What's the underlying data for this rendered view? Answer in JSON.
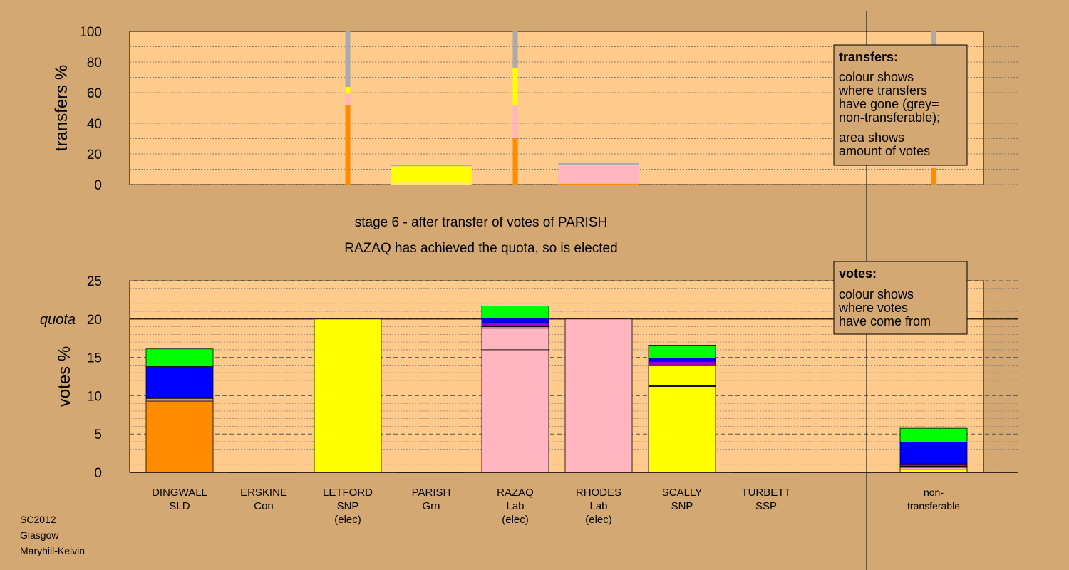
{
  "colors": {
    "background": "#d4a872",
    "plot": "#ffcb8c",
    "orange": "#ff8c00",
    "pink": "#ffb6c1",
    "yellow": "#ffff00",
    "blue": "#0000ff",
    "green": "#00ff00",
    "grey": "#aaaaaa",
    "purple": "#9900cc"
  },
  "caption": {
    "line1": "stage 6 - after transfer of votes of PARISH",
    "line2": "RAZAQ has achieved the quota, so is elected"
  },
  "footer": [
    "SC2012",
    "Glasgow",
    "Maryhill-Kelvin"
  ],
  "candidates": [
    {
      "key": "dingwall",
      "name": "DINGWALL",
      "party": "SLD",
      "status": ""
    },
    {
      "key": "erskine",
      "name": "ERSKINE",
      "party": "Con",
      "status": ""
    },
    {
      "key": "letford",
      "name": "LETFORD",
      "party": "SNP",
      "status": "(elec)"
    },
    {
      "key": "parish",
      "name": "PARISH",
      "party": "Grn",
      "status": ""
    },
    {
      "key": "razaq",
      "name": "RAZAQ",
      "party": "Lab",
      "status": "(elec)"
    },
    {
      "key": "rhodes",
      "name": "RHODES",
      "party": "Lab",
      "status": "(elec)"
    },
    {
      "key": "scally",
      "name": "SCALLY",
      "party": "SNP",
      "status": ""
    },
    {
      "key": "turbett",
      "name": "TURBETT",
      "party": "SSP",
      "status": ""
    },
    {
      "key": "nontransferable",
      "name": "non-",
      "party": "transferable",
      "status": ""
    }
  ],
  "chart_data": [
    {
      "type": "bar",
      "stacked": true,
      "ylabel": "transfers %",
      "ylim": [
        0,
        100
      ],
      "yticks": [
        0,
        20,
        40,
        60,
        80,
        100
      ],
      "legend": {
        "title": "transfers:",
        "lines": [
          "colour shows",
          "where transfers",
          "have gone (grey=",
          "non-transferable);",
          "area shows",
          "amount of votes"
        ]
      },
      "bars": [
        {
          "position": 2,
          "width_votes": 0.3,
          "segments": [
            {
              "color": "orange",
              "value": 51.6
            },
            {
              "color": "pink",
              "value": 7.8
            },
            {
              "color": "yellow",
              "value": 4.3
            },
            {
              "color": "grey",
              "value": 36.3
            }
          ]
        },
        {
          "position": 3,
          "width_votes": 14.0,
          "segments": [
            {
              "color": "yellow",
              "value": 1.5,
              "muted": true
            },
            {
              "color": "yellow",
              "value": 10.5
            },
            {
              "color": "grey",
              "value": 0.8
            }
          ]
        },
        {
          "position": 4,
          "width_votes": 0.3,
          "segments": [
            {
              "color": "orange",
              "value": 30.4
            },
            {
              "color": "pink",
              "value": 21.7
            },
            {
              "color": "yellow",
              "value": 23.9
            },
            {
              "color": "grey",
              "value": 24.0
            }
          ]
        },
        {
          "position": 5,
          "width_votes": 14.0,
          "segments": [
            {
              "color": "orange",
              "value": 0.6
            },
            {
              "color": "pink",
              "value": 11.7
            },
            {
              "color": "yellow",
              "value": 0.5
            },
            {
              "color": "grey",
              "value": 1.2
            }
          ]
        },
        {
          "position": 8,
          "width_votes": 0.1,
          "segments": [
            {
              "color": "orange",
              "value": 10.7
            },
            {
              "color": "pink",
              "value": 29.3
            },
            {
              "color": "yellow",
              "value": 31.2
            },
            {
              "color": "grey",
              "value": 28.8
            }
          ]
        }
      ]
    },
    {
      "type": "bar",
      "stacked": true,
      "ylabel": "votes %",
      "ylim": [
        0,
        25
      ],
      "yticks": [
        0,
        5,
        10,
        15,
        20,
        25
      ],
      "quota": 20,
      "quota_label": "quota",
      "legend": {
        "title": "votes:",
        "lines": [
          "colour shows",
          "where votes",
          "have come from"
        ]
      },
      "bars": [
        {
          "candidate": "dingwall",
          "segments": [
            {
              "color": "orange",
              "value": 9.3
            },
            {
              "color": "pink",
              "value": 0.15
            },
            {
              "color": "yellow",
              "value": 0.15
            },
            {
              "color": "orange",
              "value": 0.15
            },
            {
              "color": "blue",
              "value": 4.05
            },
            {
              "color": "green",
              "value": 2.3
            }
          ]
        },
        {
          "candidate": "erskine",
          "segments": [
            {
              "color": "grey",
              "value": 0.05
            }
          ]
        },
        {
          "candidate": "letford",
          "segments": [
            {
              "color": "yellow",
              "value": 20
            }
          ]
        },
        {
          "candidate": "parish",
          "segments": [
            {
              "color": "grey",
              "value": 0.05
            }
          ]
        },
        {
          "candidate": "razaq",
          "segments": [
            {
              "color": "pink",
              "value": 16
            },
            {
              "color": "pink",
              "value": 2.8
            },
            {
              "color": "orange",
              "value": 0.2
            },
            {
              "color": "purple",
              "value": 0.5
            },
            {
              "color": "blue",
              "value": 0.6
            },
            {
              "color": "green",
              "value": 1.6
            }
          ]
        },
        {
          "candidate": "rhodes",
          "segments": [
            {
              "color": "pink",
              "value": 20
            }
          ]
        },
        {
          "candidate": "scally",
          "segments": [
            {
              "color": "yellow",
              "value": 11.2
            },
            {
              "color": "pink",
              "value": 0.1
            },
            {
              "color": "yellow",
              "value": 2.6
            },
            {
              "color": "purple",
              "value": 0.6
            },
            {
              "color": "blue",
              "value": 0.4
            },
            {
              "color": "green",
              "value": 1.7
            }
          ]
        },
        {
          "candidate": "turbett",
          "segments": [
            {
              "color": "grey",
              "value": 0.05
            }
          ]
        },
        {
          "candidate": "nontransferable",
          "segments": [
            {
              "color": "yellow",
              "value": 0.35
            },
            {
              "color": "pink",
              "value": 0.3
            },
            {
              "color": "orange",
              "value": 0.15
            },
            {
              "color": "purple",
              "value": 0.3
            },
            {
              "color": "blue",
              "value": 2.85
            },
            {
              "color": "green",
              "value": 1.8
            }
          ]
        }
      ]
    }
  ]
}
